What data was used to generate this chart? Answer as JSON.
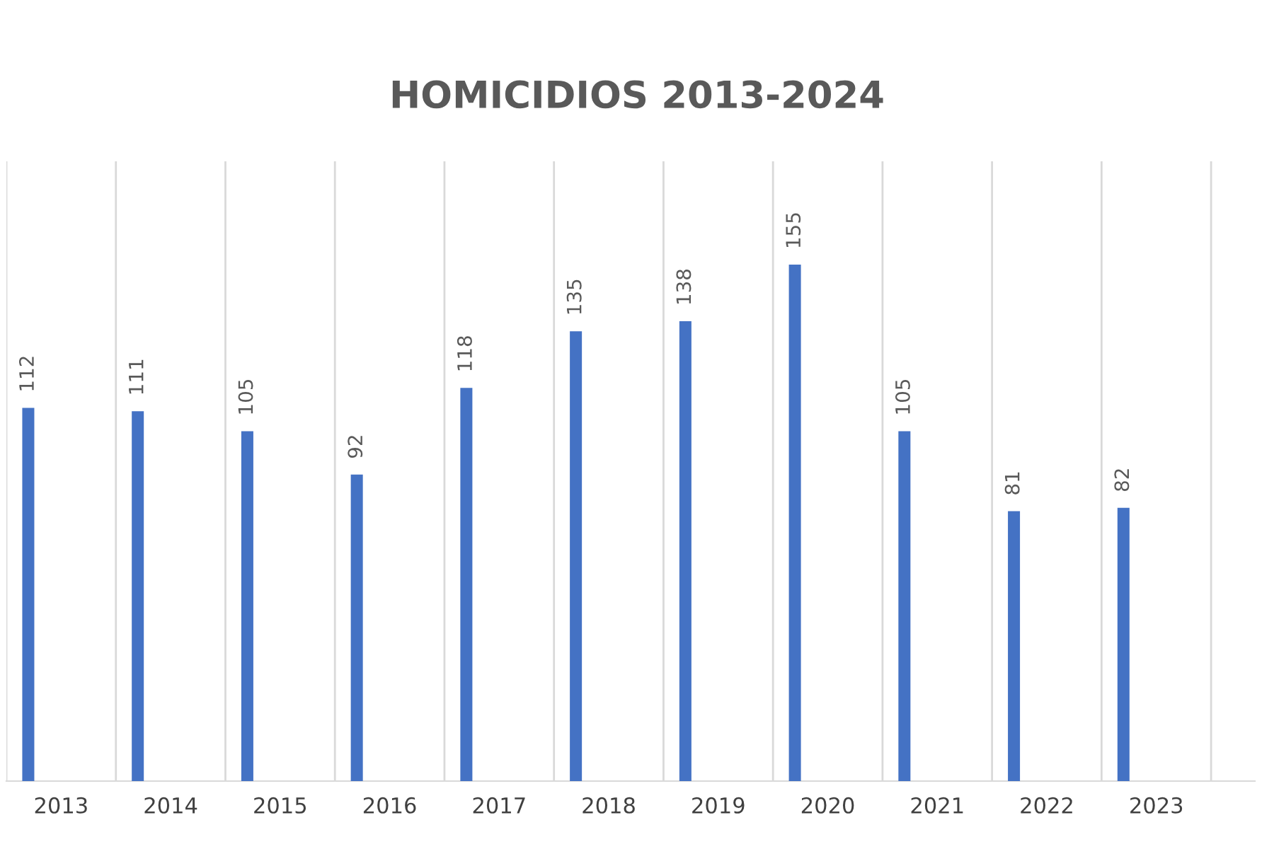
{
  "chart_data": {
    "type": "bar",
    "title": "HOMICIDIOS 2013-2024",
    "categories": [
      "2013",
      "2014",
      "2015",
      "2016",
      "2017",
      "2018",
      "2019",
      "2020",
      "2021",
      "2022",
      "2023"
    ],
    "values": [
      112,
      111,
      105,
      92,
      118,
      135,
      138,
      155,
      105,
      81,
      82
    ],
    "color": "#4472c4",
    "data_labels": true,
    "grid": "x",
    "legend": false
  }
}
